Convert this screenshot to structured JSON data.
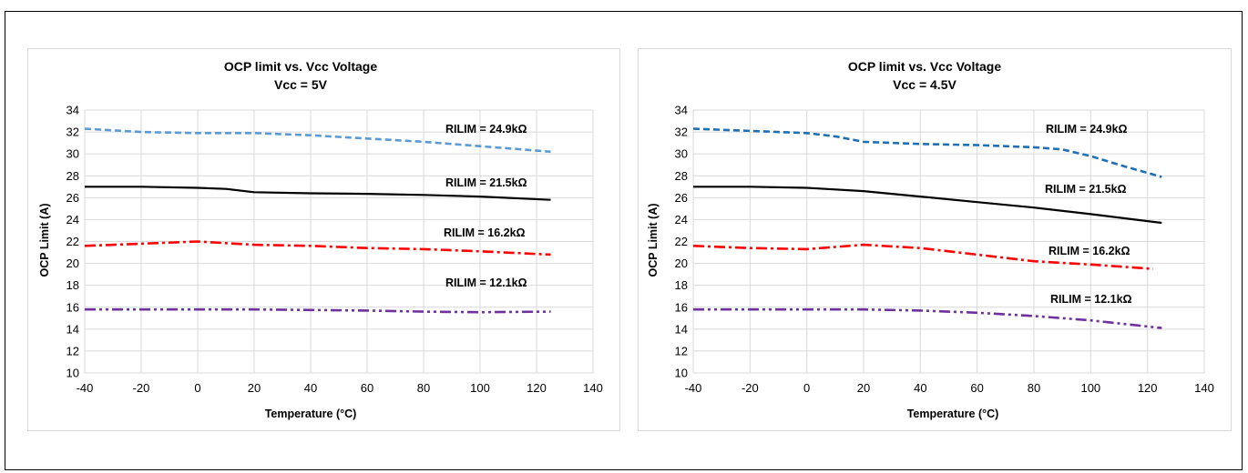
{
  "chart_data": [
    {
      "type": "line",
      "title": "OCP limit vs. Vcc Voltage",
      "subtitle": "Vcc = 5V",
      "xlabel": "Temperature (°C)",
      "ylabel": "OCP Limit (A)",
      "xlim": [
        -40,
        140
      ],
      "ylim": [
        10,
        34
      ],
      "xticks": [
        -40,
        -20,
        0,
        20,
        40,
        60,
        80,
        100,
        120,
        140
      ],
      "yticks": [
        10,
        12,
        14,
        16,
        18,
        20,
        22,
        24,
        26,
        28,
        30,
        32,
        34
      ],
      "grid": true,
      "series": [
        {
          "name": "RILIM = 24.9kΩ",
          "color": "#5b9bd5",
          "dash": "dash",
          "x": [
            -40,
            -20,
            0,
            20,
            40,
            60,
            80,
            100,
            125
          ],
          "y": [
            32.3,
            32.0,
            31.9,
            31.9,
            31.7,
            31.4,
            31.1,
            30.7,
            30.2
          ]
        },
        {
          "name": "RILIM = 21.5kΩ",
          "color": "#000000",
          "dash": "solid",
          "x": [
            -40,
            -20,
            0,
            10,
            20,
            40,
            60,
            80,
            100,
            125
          ],
          "y": [
            27.0,
            27.0,
            26.9,
            26.8,
            26.5,
            26.4,
            26.35,
            26.25,
            26.1,
            25.8
          ]
        },
        {
          "name": "RILIM = 16.2kΩ",
          "color": "#ff0000",
          "dash": "dashdot",
          "x": [
            -40,
            -20,
            0,
            20,
            40,
            60,
            80,
            100,
            125
          ],
          "y": [
            21.6,
            21.8,
            22.0,
            21.7,
            21.6,
            21.4,
            21.3,
            21.1,
            20.8
          ]
        },
        {
          "name": "RILIM = 12.1kΩ",
          "color": "#7030a0",
          "dash": "dashdotdot",
          "x": [
            -40,
            -20,
            0,
            20,
            40,
            60,
            80,
            100,
            125
          ],
          "y": [
            15.8,
            15.8,
            15.8,
            15.8,
            15.75,
            15.7,
            15.6,
            15.55,
            15.6
          ]
        }
      ]
    },
    {
      "type": "line",
      "title": "OCP limit vs. Vcc Voltage",
      "subtitle": "Vcc = 4.5V",
      "xlabel": "Temperature (°C)",
      "ylabel": "OCP Limit (A)",
      "xlim": [
        -40,
        140
      ],
      "ylim": [
        10,
        34
      ],
      "xticks": [
        -40,
        -20,
        0,
        20,
        40,
        60,
        80,
        100,
        120,
        140
      ],
      "yticks": [
        10,
        12,
        14,
        16,
        18,
        20,
        22,
        24,
        26,
        28,
        30,
        32,
        34
      ],
      "grid": true,
      "series": [
        {
          "name": "RILIM = 24.9kΩ",
          "color": "#1f6fb5",
          "dash": "dash",
          "x": [
            -40,
            -20,
            0,
            10,
            20,
            40,
            60,
            80,
            90,
            100,
            110,
            125
          ],
          "y": [
            32.3,
            32.1,
            31.9,
            31.6,
            31.1,
            30.9,
            30.8,
            30.6,
            30.4,
            29.8,
            29.0,
            27.9
          ]
        },
        {
          "name": "RILIM = 21.5kΩ",
          "color": "#000000",
          "dash": "solid",
          "x": [
            -40,
            -20,
            0,
            20,
            40,
            60,
            80,
            100,
            125
          ],
          "y": [
            27.0,
            27.0,
            26.9,
            26.6,
            26.1,
            25.6,
            25.1,
            24.5,
            23.7
          ]
        },
        {
          "name": "RILIM = 16.2kΩ",
          "color": "#ff0000",
          "dash": "dashdot",
          "x": [
            -40,
            -20,
            0,
            10,
            20,
            40,
            60,
            80,
            100,
            122
          ],
          "y": [
            21.6,
            21.4,
            21.3,
            21.5,
            21.7,
            21.4,
            20.8,
            20.2,
            19.9,
            19.5
          ]
        },
        {
          "name": "RILIM = 12.1kΩ",
          "color": "#7030a0",
          "dash": "dashdotdot",
          "x": [
            -40,
            -20,
            0,
            20,
            40,
            60,
            80,
            100,
            125
          ],
          "y": [
            15.8,
            15.8,
            15.8,
            15.8,
            15.7,
            15.5,
            15.2,
            14.8,
            14.1
          ]
        }
      ]
    }
  ]
}
